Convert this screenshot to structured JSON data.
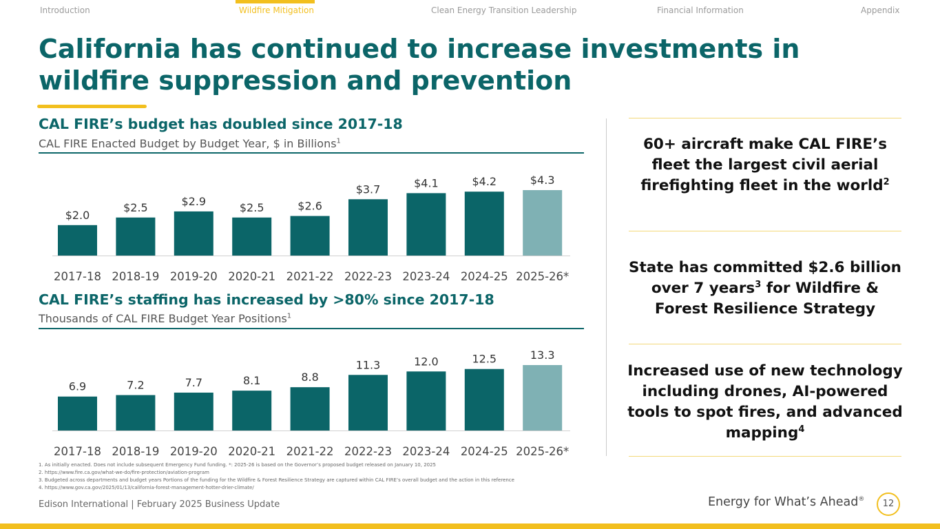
{
  "nav": {
    "tabs": [
      "Introduction",
      "Wildfire Mitigation",
      "Clean Energy Transition Leadership",
      "Financial Information",
      "Appendix"
    ],
    "active_index": 1
  },
  "title": "California has continued to increase investments in wildfire suppression and prevention",
  "budget": {
    "title": "CAL FIRE’s budget has doubled since 2017-18",
    "subtitle": "CAL FIRE Enacted Budget by Budget Year, $ in Billions",
    "subtitle_sup": "1"
  },
  "staffing": {
    "title": "CAL FIRE’s staffing has increased by >80% since 2017-18",
    "subtitle": "Thousands of CAL FIRE Budget Year Positions",
    "subtitle_sup": "1"
  },
  "chart_data": [
    {
      "type": "bar",
      "title": "CAL FIRE Enacted Budget by Budget Year, $ in Billions",
      "categories": [
        "2017-18",
        "2018-19",
        "2019-20",
        "2020-21",
        "2021-22",
        "2022-23",
        "2023-24",
        "2024-25",
        "2025-26*"
      ],
      "values": [
        2.0,
        2.5,
        2.9,
        2.5,
        2.6,
        3.7,
        4.1,
        4.2,
        4.3
      ],
      "labels": [
        "$2.0",
        "$2.5",
        "$2.9",
        "$2.5",
        "$2.6",
        "$3.7",
        "$4.1",
        "$4.2",
        "$4.3"
      ],
      "ylim": [
        0,
        4.3
      ],
      "colors": {
        "actual": "#0b6568",
        "proposed": "#7fb1b4"
      },
      "xlabel": "",
      "ylabel": ""
    },
    {
      "type": "bar",
      "title": "Thousands of CAL FIRE Budget Year Positions",
      "categories": [
        "2017-18",
        "2018-19",
        "2019-20",
        "2020-21",
        "2021-22",
        "2022-23",
        "2023-24",
        "2024-25",
        "2025-26*"
      ],
      "values": [
        6.9,
        7.2,
        7.7,
        8.1,
        8.8,
        11.3,
        12.0,
        12.5,
        13.3
      ],
      "labels": [
        "6.9",
        "7.2",
        "7.7",
        "8.1",
        "8.8",
        "11.3",
        "12.0",
        "12.5",
        "13.3"
      ],
      "ylim": [
        0,
        13.3
      ],
      "colors": {
        "actual": "#0b6568",
        "proposed": "#7fb1b4"
      },
      "xlabel": "",
      "ylabel": ""
    }
  ],
  "callouts": [
    {
      "text": "60+ aircraft make CAL FIRE’s fleet the largest civil aerial firefighting fleet in the world",
      "sup": "2"
    },
    {
      "text_before": "State has committed $2.6 billion over 7 years",
      "sup": "3",
      "text_after": " for Wildfire & Forest Resilience Strategy"
    },
    {
      "text": "Increased use of new technology including drones, AI-powered tools to spot fires, and advanced mapping",
      "sup": "4"
    }
  ],
  "footnotes": [
    "1.   As initially enacted. Does not include subsequent Emergency Fund funding. *: 2025-26 is based on the Governor’s proposed budget released on January 10, 2025",
    "2.   https://www.fire.ca.gov/what-we-do/fire-protection/aviation-program",
    "3.   Budgeted across departments and budget years Portions of the funding for the Wildfire & Forest Resilience Strategy are captured within CAL FIRE’s overall budget and the action in this reference",
    "4.   https://www.gov.ca.gov/2025/01/13/california-forest-management-hotter-drier-climate/"
  ],
  "footer": {
    "left": "Edison International |  February 2025 Business Update",
    "tagline": "Energy for What’s Ahead",
    "tagline_mark": "®",
    "page": "12"
  }
}
